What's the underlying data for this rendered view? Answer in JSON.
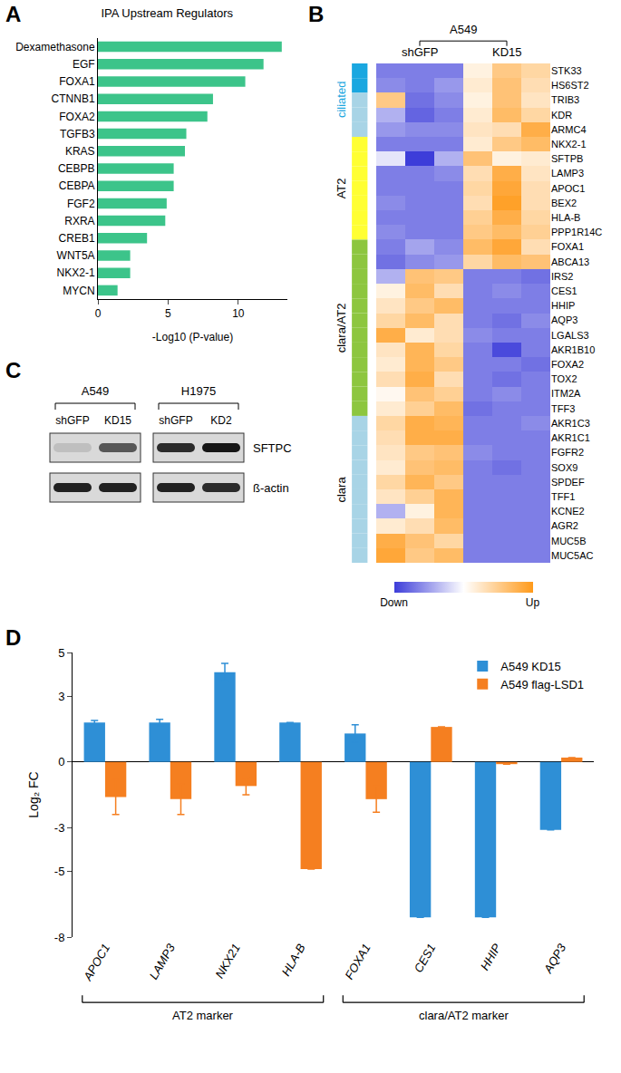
{
  "chart_data": [
    {
      "type": "bar",
      "label": "A",
      "title": "IPA Upstream Regulators",
      "orientation": "horizontal",
      "categories": [
        "Dexamethasone",
        "EGF",
        "FOXA1",
        "CTNNB1",
        "FOXA2",
        "TGFB3",
        "KRAS",
        "CEBPB",
        "CEBPA",
        "FGF2",
        "RXRA",
        "CREB1",
        "WNT5A",
        "NKX2-1",
        "MYCN"
      ],
      "values": [
        13.1,
        11.8,
        10.5,
        8.2,
        7.8,
        6.3,
        6.2,
        5.4,
        5.4,
        4.9,
        4.8,
        3.5,
        2.3,
        2.3,
        1.4
      ],
      "color": "#3cc48a",
      "xlim": [
        0,
        13.5
      ],
      "xticks": [
        0,
        5,
        10
      ],
      "x_label": "-Log10 (P-value)",
      "grid": false
    },
    {
      "type": "heatmap",
      "label": "B",
      "cell_line": "A549",
      "columns": [
        "shGFP",
        "shGFP",
        "shGFP",
        "KD15",
        "KD15",
        "KD15"
      ],
      "rows": [
        "STK33",
        "HS6ST2",
        "TRIB3",
        "KDR",
        "ARMC4",
        "NKX2-1",
        "SFTPB",
        "LAMP3",
        "APOC1",
        "BEX2",
        "HLA-B",
        "PPP1R14C",
        "FOXA1",
        "ABCA13",
        "IRS2",
        "CES1",
        "HHIP",
        "AQP3",
        "LGALS3",
        "AKR1B10",
        "FOXA2",
        "TOX2",
        "ITM2A",
        "TFF3",
        "AKR1C3",
        "AKR1C1",
        "FGFR2",
        "SOX9",
        "SPDEF",
        "TFF1",
        "KCNE2",
        "AGR2",
        "MUC5B",
        "MUC5AC"
      ],
      "cells": [
        [
          -1.0,
          -1.0,
          -1.0,
          0.2,
          0.8,
          0.6
        ],
        [
          -0.9,
          -1.0,
          -0.8,
          0.3,
          0.9,
          0.5
        ],
        [
          0.8,
          -1.1,
          -0.9,
          0.2,
          0.9,
          0.4
        ],
        [
          -0.6,
          -1.2,
          -1.0,
          0.3,
          1.0,
          0.6
        ],
        [
          -0.8,
          -0.9,
          -0.9,
          0.4,
          0.5,
          1.2
        ],
        [
          -1.0,
          -1.0,
          -1.0,
          0.3,
          0.8,
          1.0
        ],
        [
          -0.2,
          -1.5,
          -0.6,
          0.9,
          0.2,
          0.3
        ],
        [
          -1.0,
          -1.0,
          -0.9,
          0.5,
          1.2,
          0.4
        ],
        [
          -1.0,
          -1.0,
          -1.0,
          0.6,
          1.3,
          0.5
        ],
        [
          -0.9,
          -1.0,
          -1.0,
          0.5,
          1.4,
          0.5
        ],
        [
          -1.0,
          -1.0,
          -1.0,
          0.7,
          1.2,
          0.6
        ],
        [
          -0.9,
          -1.0,
          -1.0,
          0.8,
          1.0,
          0.7
        ],
        [
          -1.0,
          -0.7,
          -0.9,
          1.0,
          1.3,
          0.5
        ],
        [
          -1.1,
          -0.9,
          -0.8,
          0.6,
          1.0,
          0.9
        ],
        [
          -0.6,
          0.9,
          0.8,
          -1.0,
          -1.0,
          -1.1
        ],
        [
          0.2,
          1.0,
          0.5,
          -1.0,
          -0.9,
          -1.0
        ],
        [
          0.4,
          0.8,
          1.0,
          -1.0,
          -1.0,
          -1.0
        ],
        [
          0.6,
          1.0,
          0.5,
          -1.0,
          -1.1,
          -0.9
        ],
        [
          1.2,
          0.3,
          0.5,
          -0.9,
          -1.0,
          -1.0
        ],
        [
          0.4,
          1.1,
          0.6,
          -1.0,
          -1.4,
          -1.0
        ],
        [
          0.3,
          1.1,
          0.8,
          -1.0,
          -1.0,
          -1.1
        ],
        [
          0.5,
          1.2,
          0.5,
          -1.0,
          -1.1,
          -1.0
        ],
        [
          0.1,
          0.9,
          0.7,
          -1.0,
          -0.9,
          -1.0
        ],
        [
          0.3,
          0.7,
          1.0,
          -1.1,
          -1.0,
          -1.0
        ],
        [
          0.6,
          1.2,
          1.1,
          -1.0,
          -1.0,
          -0.9
        ],
        [
          0.5,
          1.2,
          1.2,
          -1.0,
          -1.0,
          -1.0
        ],
        [
          0.4,
          0.8,
          0.9,
          -0.9,
          -1.0,
          -1.0
        ],
        [
          0.3,
          0.9,
          1.0,
          -1.0,
          -1.1,
          -1.0
        ],
        [
          0.6,
          1.1,
          0.8,
          -1.0,
          -1.0,
          -1.0
        ],
        [
          0.4,
          0.7,
          1.1,
          -1.0,
          -1.0,
          -1.0
        ],
        [
          -0.6,
          0.2,
          1.1,
          -1.0,
          -1.0,
          -1.0
        ],
        [
          0.3,
          0.5,
          1.0,
          -1.0,
          -1.0,
          -1.0
        ],
        [
          1.2,
          0.9,
          0.6,
          -1.0,
          -1.0,
          -1.0
        ],
        [
          1.3,
          0.8,
          1.0,
          -1.0,
          -1.0,
          -1.0
        ]
      ],
      "colors": [
        "#3d3dd9",
        "#ffffff",
        "#ff9a1a"
      ],
      "color_range": [
        -1.5,
        1.5
      ],
      "color_ticks": [
        {
          "value": -1.5,
          "label": "Down"
        },
        {
          "value": 1.5,
          "label": "Up"
        }
      ],
      "row_colors": [
        "#1aa7e0",
        "#1aa7e0",
        "#a8d4e6",
        "#a8d4e6",
        "#a8d4e6",
        "#ffff33",
        "#ffff33",
        "#ffff33",
        "#ffff33",
        "#ffff33",
        "#ffff33",
        "#ffff33",
        "#8dc63f",
        "#8dc63f",
        "#8dc63f",
        "#8dc63f",
        "#8dc63f",
        "#8dc63f",
        "#8dc63f",
        "#8dc63f",
        "#8dc63f",
        "#8dc63f",
        "#8dc63f",
        "#8dc63f",
        "#a8d4e6",
        "#a8d4e6",
        "#a8d4e6",
        "#a8d4e6",
        "#a8d4e6",
        "#a8d4e6",
        "#a8d4e6",
        "#a8d4e6",
        "#a8d4e6",
        "#a8d4e6"
      ],
      "row_groups": [
        {
          "label": "ciliated",
          "first": "STK33",
          "last": "ARMC4",
          "color": "#1aa7e0"
        },
        {
          "label": "AT2",
          "first": "NKX2-1",
          "last": "PPP1R14C",
          "color": "#000000"
        },
        {
          "label": "clara/AT2",
          "first": "FOXA1",
          "last": "TFF3",
          "color": "#000000"
        },
        {
          "label": "clara",
          "first": "AKR1C3",
          "last": "MUC5AC",
          "color": "#000000"
        }
      ]
    },
    {
      "type": "bar",
      "label": "D",
      "categories": [
        "APOC1",
        "LAMP3",
        "NKX21",
        "HLA-B",
        "FOXA1",
        "CES1",
        "HHIP",
        "AQP3"
      ],
      "series": [
        {
          "name": "A549 KD15",
          "color": "#2e8fd6",
          "values": [
            1.8,
            1.8,
            4.1,
            1.8,
            1.3,
            -7.1,
            -7.1,
            -3.1
          ],
          "errors": [
            0.1,
            0.15,
            0.4,
            0,
            0.4,
            0,
            0,
            0
          ]
        },
        {
          "name": "A549 flag-LSD1",
          "color": "#f57f20",
          "values": [
            -1.6,
            -1.7,
            -1.1,
            -4.9,
            -1.7,
            1.6,
            -0.1,
            0.2
          ],
          "errors": [
            0.8,
            0.7,
            0.4,
            0,
            0.6,
            0,
            0,
            0
          ]
        }
      ],
      "ylim": [
        -8,
        5
      ],
      "yticks": [
        -8,
        -5,
        -3,
        0,
        3,
        5
      ],
      "y_label": "Log₂ FC",
      "legend": "top-right",
      "grid": false,
      "groups": [
        {
          "label": "AT2 marker",
          "first": "APOC1",
          "last": "HLA-B"
        },
        {
          "label": "clara/AT2 marker",
          "first": "FOXA1",
          "last": "AQP3"
        }
      ]
    }
  ],
  "blot": {
    "label": "C",
    "groups": [
      {
        "cell_line": "A549",
        "lanes": [
          "shGFP",
          "KD15"
        ]
      },
      {
        "cell_line": "H1975",
        "lanes": [
          "shGFP",
          "KD2"
        ]
      }
    ],
    "rows": [
      {
        "protein": "SFTPC",
        "intensity": [
          [
            0.12,
            0.6
          ],
          [
            0.8,
            0.9
          ]
        ]
      },
      {
        "protein": "ß-actin",
        "intensity": [
          [
            0.85,
            0.85
          ],
          [
            0.85,
            0.8
          ]
        ]
      }
    ]
  }
}
